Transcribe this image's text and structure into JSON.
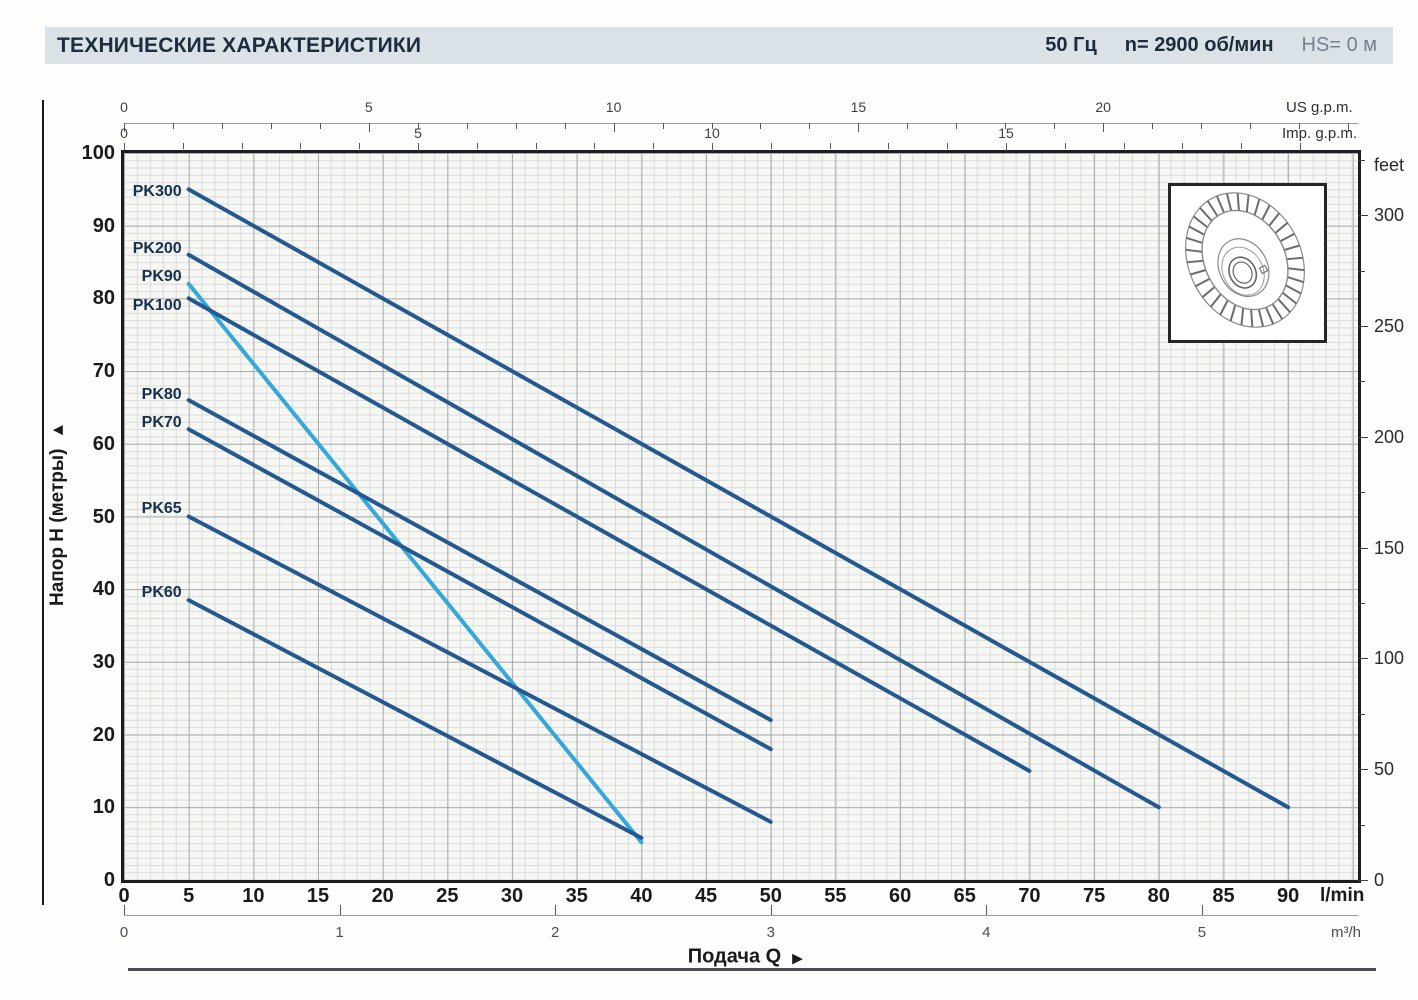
{
  "header": {
    "title": "ТЕХНИЧЕСКИЕ ХАРАКТЕРИСТИКИ",
    "frequency": "50 Гц",
    "speed": "n= 2900 об/мин",
    "suction_head": "HS= 0 м"
  },
  "axes": {
    "y_left_label": "Напор H (метры)",
    "y_left_arrow": "▶",
    "x_bottom_label": "Подача Q",
    "x_bottom_arrow": "▶",
    "unit_lmin": "l/min",
    "unit_m3h": "m³/h",
    "unit_us_gpm": "US g.p.m.",
    "unit_imp_gpm": "Imp. g.p.m.",
    "unit_feet": "feet"
  },
  "chart_data": {
    "type": "line",
    "title": "Pump performance curves H(Q)",
    "x": {
      "unit": "l/min",
      "min": 0,
      "max": 95.4,
      "major_ticks": [
        0,
        5,
        10,
        15,
        20,
        25,
        30,
        35,
        40,
        45,
        50,
        55,
        60,
        65,
        70,
        75,
        80,
        85,
        90
      ],
      "minor_step": 1
    },
    "x_alt": [
      {
        "unit": "US g.p.m.",
        "lmin_per_unit": 3.785,
        "labeled_ticks": [
          0,
          5,
          10,
          15,
          20
        ],
        "minor_step": 1,
        "max": 25
      },
      {
        "unit": "Imp. g.p.m.",
        "lmin_per_unit": 4.546,
        "labeled_ticks": [
          0,
          5,
          10,
          15
        ],
        "minor_step": 1,
        "max": 20
      },
      {
        "unit": "m³/h",
        "lmin_per_unit": 16.667,
        "labeled_ticks": [
          0,
          1,
          2,
          3,
          4,
          5
        ]
      }
    ],
    "y": {
      "unit": "м",
      "label": "Напор H (метры)",
      "min": 0,
      "max": 100,
      "major_ticks": [
        0,
        10,
        20,
        30,
        40,
        50,
        60,
        70,
        80,
        90,
        100
      ],
      "minor_step": 1
    },
    "y_alt": {
      "unit": "feet",
      "m_per_ft": 0.3048,
      "tick_step": 25,
      "labeled_ticks": [
        0,
        50,
        100,
        150,
        200,
        250,
        300
      ],
      "max": 325
    },
    "grid": "minor+major",
    "legend_position": "curve-start-labels",
    "series": [
      {
        "name": "PK300",
        "color": "#24598f",
        "points": [
          [
            5,
            95
          ],
          [
            90,
            10
          ]
        ],
        "label_dy": 3
      },
      {
        "name": "PK200",
        "color": "#24598f",
        "points": [
          [
            5,
            86
          ],
          [
            80,
            10
          ]
        ],
        "label_dy": -6
      },
      {
        "name": "PK90",
        "color": "#35a7d9",
        "points": [
          [
            5,
            82
          ],
          [
            40,
            5.2
          ]
        ],
        "label_dy": -7
      },
      {
        "name": "PK100",
        "color": "#24598f",
        "points": [
          [
            5,
            80
          ],
          [
            70,
            15
          ]
        ],
        "label_dy": 8
      },
      {
        "name": "PK80",
        "color": "#24598f",
        "points": [
          [
            5,
            66
          ],
          [
            50,
            22
          ]
        ],
        "label_dy": -5
      },
      {
        "name": "PK70",
        "color": "#24598f",
        "points": [
          [
            5,
            62
          ],
          [
            50,
            18
          ]
        ],
        "label_dy": -6
      },
      {
        "name": "PK65",
        "color": "#24598f",
        "points": [
          [
            5,
            50
          ],
          [
            50,
            8
          ]
        ],
        "label_dy": -8
      },
      {
        "name": "PK60",
        "color": "#24598f",
        "points": [
          [
            5,
            38.5
          ],
          [
            40,
            5.8
          ]
        ],
        "label_dy": -7
      }
    ]
  }
}
